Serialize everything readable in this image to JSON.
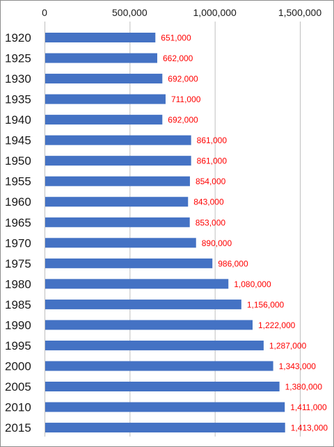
{
  "chart_data": {
    "type": "bar",
    "orientation": "horizontal",
    "title": "",
    "xlabel": "",
    "ylabel": "",
    "categories": [
      "1920",
      "1925",
      "1930",
      "1935",
      "1940",
      "1945",
      "1950",
      "1955",
      "1960",
      "1965",
      "1970",
      "1975",
      "1980",
      "1985",
      "1990",
      "1995",
      "2000",
      "2005",
      "2010",
      "2015"
    ],
    "values": [
      651000,
      662000,
      692000,
      711000,
      692000,
      861000,
      861000,
      854000,
      843000,
      853000,
      890000,
      986000,
      1080000,
      1156000,
      1222000,
      1287000,
      1343000,
      1380000,
      1411000,
      1413000
    ],
    "data_labels": [
      "651,000",
      "662,000",
      "692,000",
      "711,000",
      "692,000",
      "861,000",
      "861,000",
      "854,000",
      "843,000",
      "853,000",
      "890,000",
      "986,000",
      "1,080,000",
      "1,156,000",
      "1,222,000",
      "1,287,000",
      "1,343,000",
      "1,380,000",
      "1,411,000",
      "1,413,000"
    ],
    "xlim": [
      0,
      1500000
    ],
    "x_ticks": [
      0,
      500000,
      1000000,
      1500000
    ],
    "x_tick_labels": [
      "0",
      "500,000",
      "1,000,000",
      "1,500,000"
    ],
    "x_axis_position": "top",
    "grid": true,
    "legend": "none",
    "colors": {
      "bar": "#4472C4",
      "data_label": "#FF0000",
      "grid": "#BFBFBF"
    }
  }
}
